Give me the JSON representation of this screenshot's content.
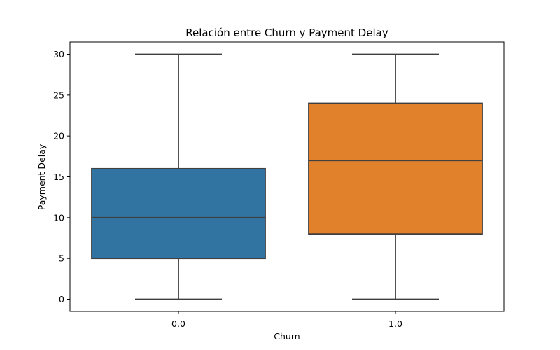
{
  "chart_data": {
    "type": "box",
    "title": "Relación entre Churn y Payment Delay",
    "xlabel": "Churn",
    "ylabel": "Payment Delay",
    "categories": [
      "0.0",
      "1.0"
    ],
    "ylim": [
      -1.5,
      31.5
    ],
    "yticks": [
      0,
      5,
      10,
      15,
      20,
      25,
      30
    ],
    "grid": false,
    "boxes": [
      {
        "category": "0.0",
        "min": 0,
        "q1": 5,
        "median": 10,
        "q3": 16,
        "max": 30,
        "color": "#3274A1"
      },
      {
        "category": "1.0",
        "min": 0,
        "q1": 8,
        "median": 17,
        "q3": 24,
        "max": 30,
        "color": "#E1812C"
      }
    ]
  }
}
